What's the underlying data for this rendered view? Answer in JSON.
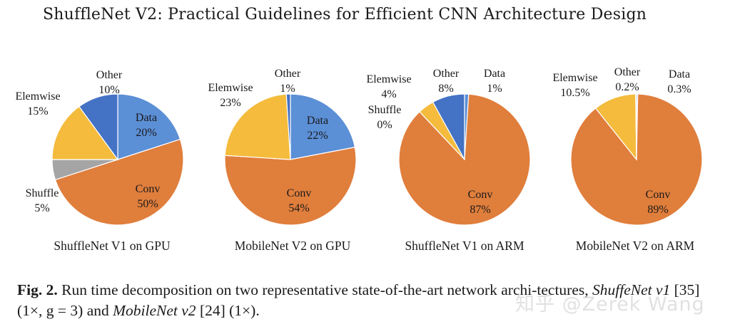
{
  "page_title": "ShuffleNet V2: Practical Guidelines for Efficient CNN Architecture Design",
  "chart_data": [
    {
      "type": "pie",
      "title": "ShuffleNet V1 on GPU",
      "slices": [
        {
          "name": "Data",
          "value": 20,
          "label": "20%",
          "color": "#5B8FD6"
        },
        {
          "name": "Conv",
          "value": 50,
          "label": "50%",
          "color": "#E07E3C"
        },
        {
          "name": "Shuffle",
          "value": 5,
          "label": "5%",
          "color": "#A5A5A5"
        },
        {
          "name": "Elemwise",
          "value": 15,
          "label": "15%",
          "color": "#F4BB3C"
        },
        {
          "name": "Other",
          "value": 10,
          "label": "10%",
          "color": "#4472C4"
        }
      ]
    },
    {
      "type": "pie",
      "title": "MobileNet V2 on GPU",
      "slices": [
        {
          "name": "Data",
          "value": 22,
          "label": "22%",
          "color": "#5B8FD6"
        },
        {
          "name": "Conv",
          "value": 54,
          "label": "54%",
          "color": "#E07E3C"
        },
        {
          "name": "Elemwise",
          "value": 23,
          "label": "23%",
          "color": "#F4BB3C"
        },
        {
          "name": "Other",
          "value": 1,
          "label": "1%",
          "color": "#4472C4"
        }
      ]
    },
    {
      "type": "pie",
      "title": "ShuffleNet V1 on ARM",
      "slices": [
        {
          "name": "Data",
          "value": 1,
          "label": "1%",
          "color": "#5B8FD6"
        },
        {
          "name": "Conv",
          "value": 87,
          "label": "87%",
          "color": "#E07E3C"
        },
        {
          "name": "Shuffle",
          "value": 0,
          "label": "0%",
          "color": "#A5A5A5"
        },
        {
          "name": "Elemwise",
          "value": 4,
          "label": "4%",
          "color": "#F4BB3C"
        },
        {
          "name": "Other",
          "value": 8,
          "label": "8%",
          "color": "#4472C4"
        }
      ]
    },
    {
      "type": "pie",
      "title": "MobileNet V2 on ARM",
      "slices": [
        {
          "name": "Data",
          "value": 0.3,
          "label": "0.3%",
          "color": "#5B8FD6"
        },
        {
          "name": "Conv",
          "value": 89,
          "label": "89%",
          "color": "#E07E3C"
        },
        {
          "name": "Elemwise",
          "value": 10.5,
          "label": "10.5%",
          "color": "#F4BB3C"
        },
        {
          "name": "Other",
          "value": 0.2,
          "label": "0.2%",
          "color": "#4472C4"
        }
      ]
    }
  ],
  "caption": {
    "fig_label": "Fig. 2.",
    "text_1": "Run time decomposition on two representative state-of-the-art network archi-tectures,",
    "model_1": "ShuffeNet v1",
    "ref_1": "[35]",
    "param_1": "(1×, g = 3) and",
    "model_2": "MobileNet v2",
    "ref_2": "[24]",
    "param_2": "(1×)."
  },
  "watermark": "知乎 @Zerek Wang"
}
